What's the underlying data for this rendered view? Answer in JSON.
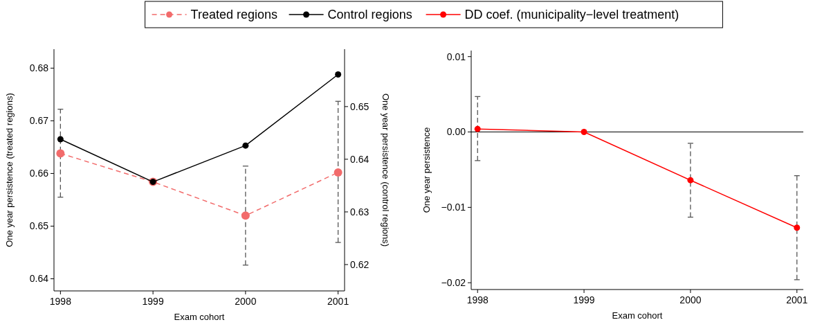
{
  "chart_data": [
    {
      "type": "line",
      "xlabel": "Exam cohort",
      "ylabel": "One year persistence (treated regions)",
      "y2label": "One year persistence (control regions)",
      "x": [
        1998,
        1999,
        2000,
        2001
      ],
      "xlim": [
        1997.93,
        2001.07
      ],
      "xticks": [
        1998,
        1999,
        2000,
        2001
      ],
      "ylim": [
        0.6377,
        0.6836
      ],
      "yticks": [
        0.64,
        0.65,
        0.66,
        0.67,
        0.68
      ],
      "y2lim": [
        0.615,
        0.6609
      ],
      "y2ticks": [
        0.62,
        0.63,
        0.64,
        0.65
      ],
      "marker": "circle",
      "legend": "top",
      "grid": false,
      "series": [
        {
          "name": "Treated regions",
          "color": "#f26b6b",
          "line_style": "dashed",
          "values": [
            0.6638,
            0.6584,
            0.652,
            0.6602
          ],
          "errors": [
            [
              0.6555,
              0.6722
            ],
            null,
            [
              0.6426,
              0.6614
            ],
            [
              0.6469,
              0.6737
            ]
          ]
        },
        {
          "name": "Control regions",
          "color": "#000000",
          "line_style": "solid",
          "axis": "y2",
          "values": [
            0.6438,
            0.6357,
            0.6426,
            0.6561
          ]
        }
      ]
    },
    {
      "type": "line",
      "xlabel": "Exam cohort",
      "ylabel": "One year persistence",
      "x": [
        1998,
        1999,
        2000,
        2001
      ],
      "xlim": [
        1997.94,
        2001.06
      ],
      "xticks": [
        1998,
        1999,
        2000,
        2001
      ],
      "ylim": [
        -0.0209,
        0.0108
      ],
      "yticks": [
        {
          "value": -0.02,
          "label": "−0.02"
        },
        {
          "value": -0.01,
          "label": "−0.01"
        },
        {
          "value": 0,
          "label": "0.00"
        },
        0.01
      ],
      "marker": "circle",
      "legend": "top",
      "grid": false,
      "ref_lines": [
        {
          "axis": "y",
          "value": 0,
          "color": "#000000"
        }
      ],
      "series": [
        {
          "name": "DD coef. (municipality−level treatment)",
          "color": "#ff0000",
          "line_style": "solid",
          "values": [
            0.0004,
            0,
            -0.0064,
            -0.0127
          ],
          "errors": [
            [
              -0.0038,
              0.0047
            ],
            null,
            [
              -0.0113,
              -0.0015
            ],
            [
              -0.0196,
              -0.0058
            ]
          ]
        }
      ]
    }
  ]
}
